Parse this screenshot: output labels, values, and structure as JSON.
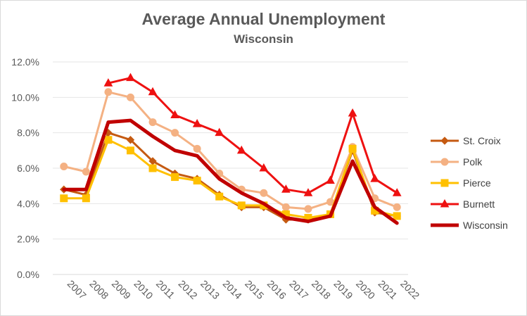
{
  "chart_data": {
    "type": "line",
    "title": "Average Annual Unemployment",
    "subtitle": "Wisconsin",
    "xlabel": "",
    "ylabel": "",
    "ylim": [
      0,
      12
    ],
    "y_ticks": [
      "0.0%",
      "2.0%",
      "4.0%",
      "6.0%",
      "8.0%",
      "10.0%",
      "12.0%"
    ],
    "y_tick_values": [
      0,
      2,
      4,
      6,
      8,
      10,
      12
    ],
    "x": [
      "2007",
      "2008",
      "2009",
      "2010",
      "2011",
      "2012",
      "2013",
      "2014",
      "2015",
      "2016",
      "2017",
      "2018",
      "2019",
      "2020",
      "2021",
      "2022"
    ],
    "grid": true,
    "legend_position": "right",
    "series": [
      {
        "name": "St. Croix",
        "color": "#c55a11",
        "marker": "diamond",
        "width": 3,
        "values": [
          4.8,
          4.5,
          8.0,
          7.6,
          6.4,
          5.7,
          5.4,
          4.5,
          3.8,
          3.8,
          3.1,
          3.1,
          3.4,
          7.0,
          3.5,
          3.3
        ]
      },
      {
        "name": "Polk",
        "color": "#f4b183",
        "marker": "circle",
        "width": 3,
        "values": [
          6.1,
          5.8,
          10.3,
          10.0,
          8.6,
          8.0,
          7.1,
          5.7,
          4.8,
          4.6,
          3.8,
          3.7,
          4.1,
          7.2,
          4.3,
          3.8
        ]
      },
      {
        "name": "Pierce",
        "color": "#ffc000",
        "marker": "square",
        "width": 3,
        "values": [
          4.3,
          4.3,
          7.6,
          7.0,
          6.0,
          5.5,
          5.3,
          4.4,
          3.9,
          3.9,
          3.4,
          3.2,
          3.4,
          7.1,
          3.6,
          3.3
        ]
      },
      {
        "name": "Burnett",
        "color": "#ee1111",
        "marker": "triangle",
        "width": 3,
        "values": [
          null,
          null,
          10.8,
          11.1,
          10.3,
          9.0,
          8.5,
          8.0,
          7.0,
          6.0,
          4.8,
          4.6,
          5.3,
          9.1,
          5.4,
          4.6
        ]
      },
      {
        "name": "Wisconsin",
        "color": "#c00000",
        "marker": "none",
        "width": 5,
        "values": [
          4.8,
          4.8,
          8.6,
          8.7,
          7.8,
          7.0,
          6.7,
          5.4,
          4.6,
          4.0,
          3.2,
          3.0,
          3.3,
          6.4,
          3.8,
          2.9
        ]
      }
    ]
  }
}
